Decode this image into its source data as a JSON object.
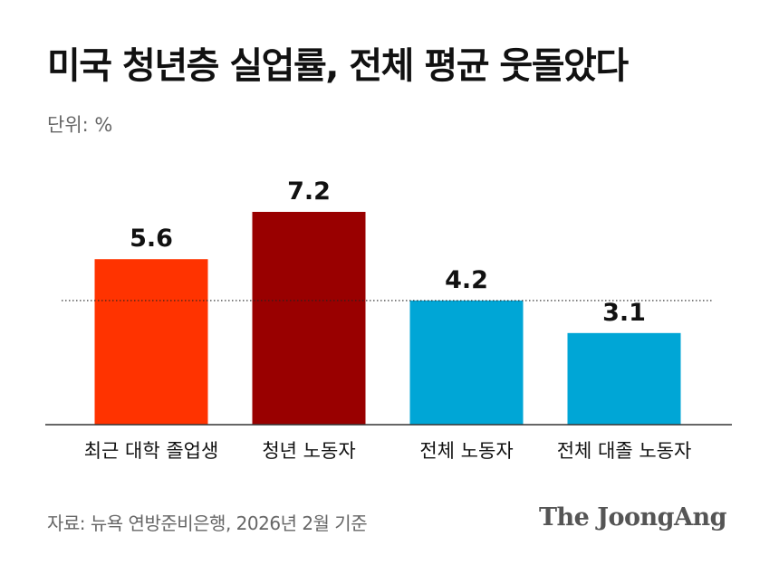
{
  "header": {
    "title": "미국 청년층 실업률, 전체 평균 웃돌았다",
    "unit": "단위: %"
  },
  "footer": {
    "source": "자료: 뉴욕 연방준비은행, 2026년 2월 기준",
    "logo": "The JoongAng"
  },
  "chart_data": {
    "type": "bar",
    "categories": [
      "최근 대학 졸업생",
      "청년 노동자",
      "전체 노동자",
      "전체 대졸 노동자"
    ],
    "values": [
      5.6,
      7.2,
      4.2,
      3.1
    ],
    "colors": [
      "#ff3300",
      "#990000",
      "#00a6d6",
      "#00a6d6"
    ],
    "value_labels": [
      "5.6",
      "7.2",
      "4.2",
      "3.1"
    ],
    "reference_line": 4.2,
    "reference_line_style": "dotted",
    "ylim": [
      0,
      7.2
    ],
    "grid": false,
    "legend": "none"
  }
}
